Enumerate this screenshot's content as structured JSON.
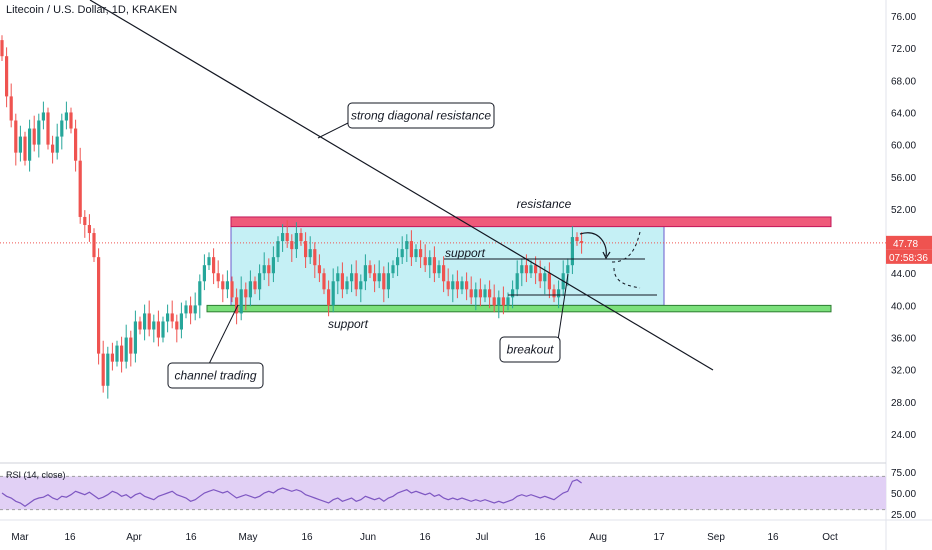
{
  "title": "Litecoin / U.S. Dollar, 1D, KRAKEN",
  "colors": {
    "up": "#26a69a",
    "down": "#ef5350",
    "channel": "#b2ebf2",
    "resistance": "#ef5a7a",
    "support": "#7be07b",
    "rsi_band": "#e1d0f5",
    "rsi_line": "#7e57c2",
    "last": "#ef5350"
  },
  "price_axis": [
    "76.00",
    "72.00",
    "68.00",
    "64.00",
    "60.00",
    "56.00",
    "52.00",
    "48.00",
    "44.00",
    "40.00",
    "36.00",
    "32.00",
    "28.00",
    "24.00"
  ],
  "last_price": "47.78",
  "countdown": "07:58:36",
  "rsi_axis": [
    "75.00",
    "50.00",
    "25.00"
  ],
  "rsi_title": "RSI (14, close)",
  "date_axis": [
    "Mar",
    "16",
    "Apr",
    "16",
    "May",
    "16",
    "Jun",
    "16",
    "Jul",
    "16",
    "Aug",
    "17",
    "Sep",
    "16",
    "Oct"
  ],
  "annotations": {
    "diagonal": "strong diagonal resistance",
    "resistance": "resistance",
    "support_inner": "support",
    "support_lower": "support",
    "channel": "channel trading",
    "breakout": "breakout"
  },
  "chart_data": {
    "type": "candlestick",
    "title": "Litecoin / U.S. Dollar, 1D, KRAKEN",
    "ylim": [
      22,
      78
    ],
    "x_ticks": [
      "Mar",
      "16",
      "Apr",
      "16",
      "May",
      "16",
      "Jun",
      "16",
      "Jul",
      "16",
      "Aug",
      "17",
      "Sep",
      "16",
      "Oct"
    ],
    "last_close": 47.78,
    "close": [
      71.0,
      66.0,
      63.0,
      59.0,
      61.0,
      58.0,
      62.0,
      60.0,
      63.0,
      64.0,
      60.0,
      59.0,
      61.0,
      63.0,
      64.0,
      62.0,
      58.0,
      51.0,
      50.0,
      49.0,
      46.0,
      34.0,
      30.0,
      34.0,
      33.0,
      35.0,
      33.0,
      36.0,
      34.0,
      38.0,
      37.0,
      39.0,
      37.0,
      38.0,
      36.0,
      38.0,
      39.0,
      38.0,
      37.0,
      39.0,
      40.0,
      39.0,
      40.0,
      43.0,
      45.0,
      46.0,
      44.0,
      43.0,
      42.0,
      43.0,
      41.0,
      39.0,
      42.0,
      41.0,
      43.0,
      42.0,
      44.0,
      45.0,
      44.0,
      46.0,
      48.0,
      49.0,
      48.0,
      47.0,
      49.0,
      48.0,
      46.0,
      47.0,
      45.0,
      44.0,
      42.0,
      40.0,
      43.0,
      44.0,
      42.0,
      43.0,
      44.0,
      42.0,
      43.0,
      45.0,
      44.0,
      43.0,
      44.0,
      42.0,
      44.0,
      45.0,
      46.0,
      47.0,
      48.0,
      46.0,
      47.0,
      46.0,
      45.0,
      46.0,
      44.0,
      45.0,
      43.0,
      42.0,
      43.0,
      42.0,
      43.0,
      42.0,
      41.0,
      42.0,
      41.0,
      42.0,
      41.0,
      40.0,
      41.0,
      40.0,
      41.0,
      42.0,
      44.0,
      45.0,
      44.0,
      45.0,
      44.0,
      43.0,
      44.0,
      42.0,
      41.0,
      42.0,
      44.0,
      45.0,
      48.5,
      48.0,
      47.78
    ],
    "rsi": {
      "ylim": [
        20,
        80
      ],
      "levels": [
        70,
        30
      ],
      "values": [
        50,
        46,
        44,
        40,
        38,
        34,
        38,
        42,
        44,
        45,
        48,
        44,
        42,
        46,
        45,
        48,
        52,
        50,
        48,
        51,
        47,
        43,
        45,
        48,
        52,
        50,
        46,
        48,
        44,
        48,
        50,
        46,
        44,
        42,
        46,
        48,
        50,
        52,
        48,
        46,
        44,
        40,
        42,
        46,
        50,
        52,
        54,
        52,
        50,
        52,
        48,
        44,
        46,
        48,
        46,
        44,
        46,
        50,
        52,
        50,
        54,
        56,
        54,
        52,
        54,
        52,
        48,
        46,
        44,
        42,
        40,
        38,
        42,
        44,
        40,
        42,
        44,
        40,
        42,
        46,
        44,
        42,
        44,
        40,
        44,
        46,
        50,
        52,
        54,
        50,
        52,
        50,
        48,
        50,
        46,
        48,
        44,
        42,
        44,
        42,
        44,
        42,
        40,
        42,
        40,
        42,
        40,
        38,
        40,
        38,
        40,
        42,
        46,
        48,
        46,
        48,
        46,
        44,
        46,
        44,
        42,
        46,
        50,
        52,
        64,
        66,
        62
      ]
    }
  }
}
